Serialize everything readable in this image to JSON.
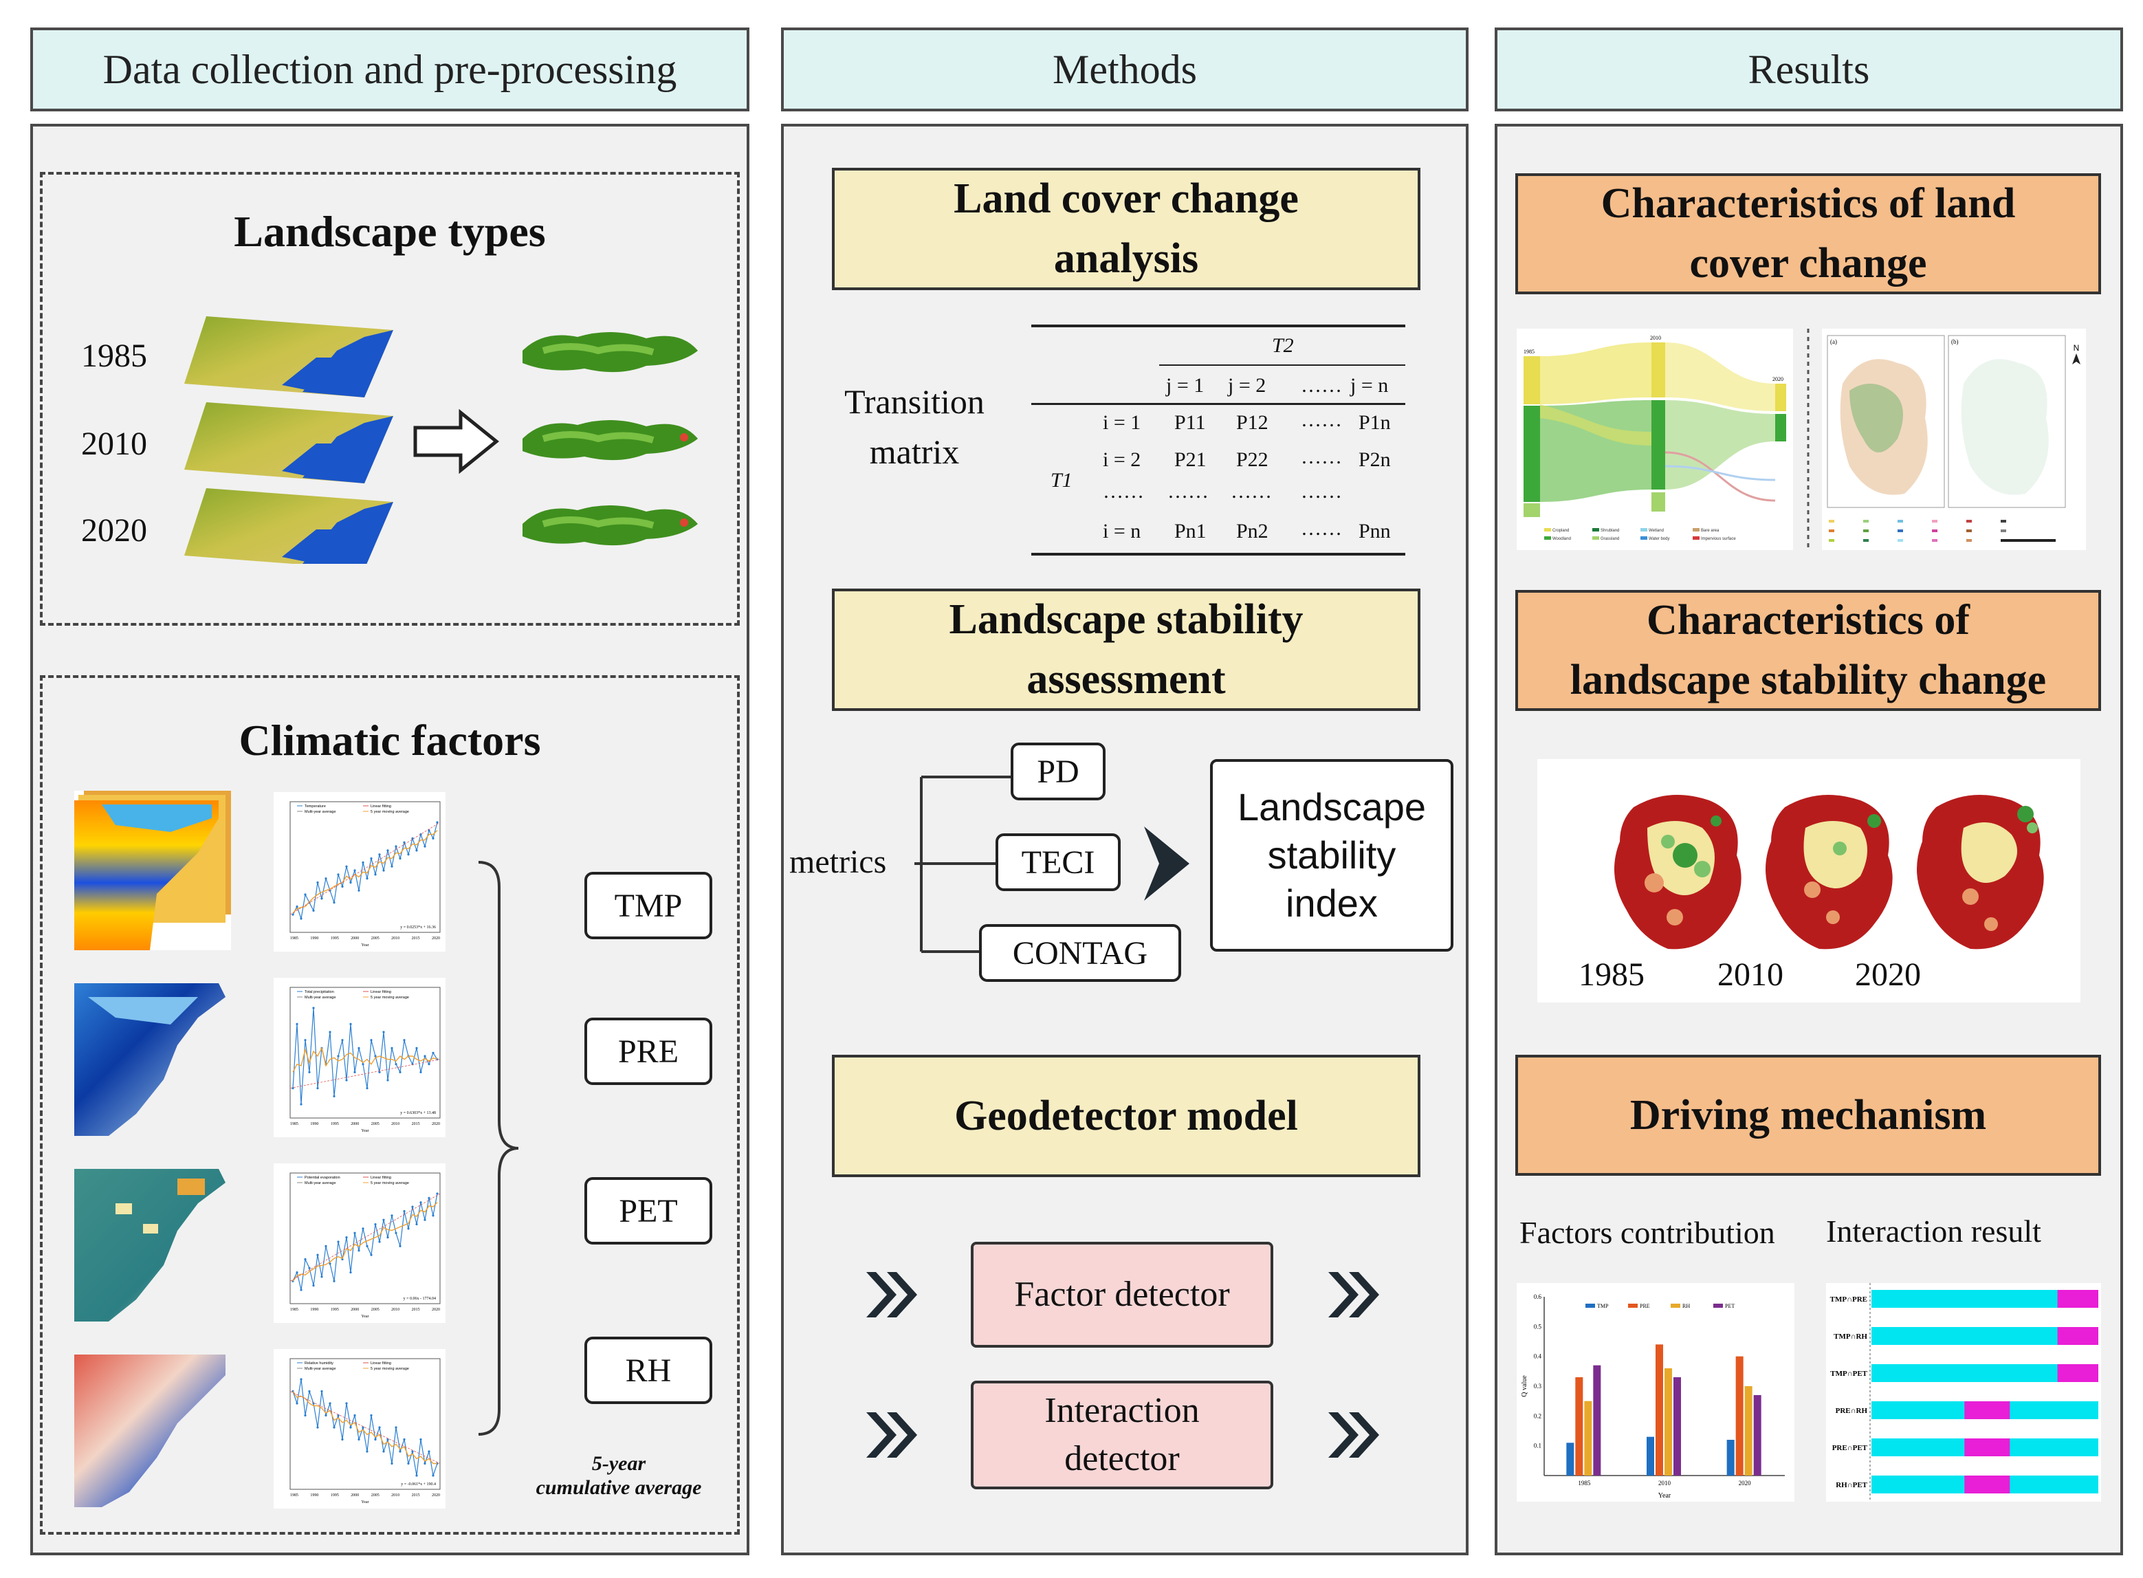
{
  "headers": {
    "data": "Data collection and pre-processing",
    "methods": "Methods",
    "results": "Results"
  },
  "data_panel": {
    "landscape_title": "Landscape types",
    "years": [
      "1985",
      "2010",
      "2020"
    ],
    "climatic_title": "Climatic factors",
    "factors": [
      "TMP",
      "PRE",
      "PET",
      "RH"
    ],
    "note_line1": "5-year",
    "note_line2": "cumulative average",
    "mini_legends": [
      {
        "a": "Temperature",
        "b": "Linear fitting",
        "c": "Multi-year average",
        "d": "5 year moving average",
        "eq": "y = 0.0253*x + 16.36",
        "xlabel": "Year"
      },
      {
        "a": "Total precipitation",
        "b": "Linear fitting",
        "c": "Multi-year average",
        "d": "5 year moving average",
        "eq": "y = 0.6303*x + 13.48",
        "xlabel": "Year"
      },
      {
        "a": "Potential evaporation",
        "b": "Linear fitting",
        "c": "Multi-year average",
        "d": "5 year moving average",
        "eq": "y = 0.06x - 1774.04",
        "xlabel": "Year"
      },
      {
        "a": "Relative humidity",
        "b": "Linear fitting",
        "c": "Multi-year average",
        "d": "5 year moving average",
        "eq": "y = -0.061*x + 190.4",
        "xlabel": "Year"
      }
    ],
    "mini_years": [
      "1985",
      "1990",
      "1995",
      "2000",
      "2005",
      "2010",
      "2015",
      "2020"
    ]
  },
  "methods_panel": {
    "lcc_title": "Land cover change\nanalysis",
    "transition_label": "Transition\nmatrix",
    "matrix": {
      "t2": "T2",
      "t1": "T1",
      "cols": [
        "j = 1",
        "j = 2",
        "……",
        "j = n"
      ],
      "rows": [
        {
          "i": "i = 1",
          "cells": [
            "P11",
            "P12",
            "……",
            "P1n"
          ]
        },
        {
          "i": "i = 2",
          "cells": [
            "P21",
            "P22",
            "……",
            "P2n"
          ]
        },
        {
          "i": "……",
          "cells": [
            "……",
            "……",
            "……",
            "……"
          ]
        },
        {
          "i": "i = n",
          "cells": [
            "Pn1",
            "Pn2",
            "……",
            "Pnn"
          ]
        }
      ]
    },
    "lsa_title": "Landscape stability\nassessment",
    "metrics_label": "metrics",
    "metrics": [
      "PD",
      "TECI",
      "CONTAG"
    ],
    "index_label": "Landscape\nstability\nindex",
    "geo_title": "Geodetector model",
    "factor_detector": "Factor detector",
    "interaction_detector": "Interaction\ndetector"
  },
  "results_panel": {
    "lcc_title": "Characteristics of land\ncover change",
    "lsc_title": "Characteristics of\nlandscape  stability change",
    "years": [
      "1985",
      "2010",
      "2020"
    ],
    "driving_title": "Driving mechanism",
    "factors_label": "Factors contribution",
    "interaction_label": "Interaction result",
    "mini_panels": [
      "(a)",
      "(b)"
    ],
    "north_label": "N",
    "sankey_years": [
      "1985",
      "2010",
      "2020"
    ],
    "sankey_legend": [
      "Cropland",
      "Woodland",
      "Shrubland",
      "Grassland",
      "Wetland",
      "Water body",
      "Bare area",
      "Impervious surface"
    ],
    "bar_chart": {
      "type": "bar",
      "categories": [
        "1985",
        "2010",
        "2020"
      ],
      "series": [
        {
          "name": "TMP",
          "values": [
            0.11,
            0.13,
            0.12
          ],
          "color": "#1f6fc2"
        },
        {
          "name": "PRE",
          "values": [
            0.33,
            0.44,
            0.4
          ],
          "color": "#e3571f"
        },
        {
          "name": "RH",
          "values": [
            0.25,
            0.36,
            0.3
          ],
          "color": "#e8a92a"
        },
        {
          "name": "PET",
          "values": [
            0.37,
            0.33,
            0.27
          ],
          "color": "#7b2d8e"
        }
      ],
      "ylim": [
        0,
        0.6
      ],
      "yticks": [
        "0.1",
        "0.2",
        "0.3",
        "0.4",
        "0.5",
        "0.6"
      ],
      "ylabel": "Q value",
      "xlabel": "Year"
    },
    "interaction_chart": {
      "type": "bar",
      "categories": [
        "TMP∩PRE",
        "TMP∩RH",
        "TMP∩PET",
        "PRE∩RH",
        "PRE∩PET",
        "RH∩PET"
      ],
      "magenta_start": [
        0.82,
        0.82,
        0.82,
        0.41,
        0.41,
        0.41
      ],
      "magenta_end": [
        1.0,
        1.0,
        1.0,
        0.61,
        0.61,
        0.61
      ],
      "base_color": "#00e5f0",
      "accent_color": "#e81fd6"
    }
  }
}
